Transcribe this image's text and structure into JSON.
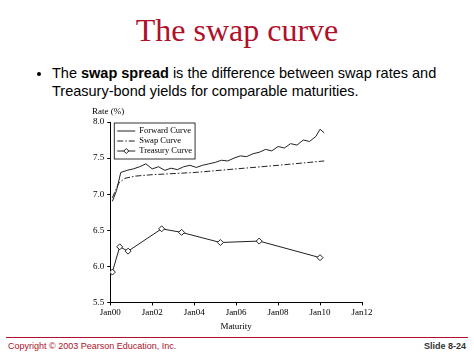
{
  "slide": {
    "title": "The swap curve",
    "bullet": "The swap spread is the difference between swap rates and Treasury-bond yields for comparable maturities.",
    "bullet_bold": "swap spread",
    "footer_left": "Copyright © 2003 Pearson Education, Inc.",
    "footer_right": "Slide 8-24"
  },
  "chart_data": {
    "type": "line",
    "y_label": "Rate (%)",
    "x_label": "Maturity",
    "xlim": [
      2000,
      2012
    ],
    "xticks": [
      {
        "value": 2000,
        "label": "Jan00"
      },
      {
        "value": 2002,
        "label": "Jan02"
      },
      {
        "value": 2004,
        "label": "Jan04"
      },
      {
        "value": 2006,
        "label": "Jan06"
      },
      {
        "value": 2008,
        "label": "Jan08"
      },
      {
        "value": 2010,
        "label": "Jan10"
      },
      {
        "value": 2012,
        "label": "Jan12"
      }
    ],
    "ylim": [
      5.5,
      8
    ],
    "yticks": [
      5.5,
      {
        "value": 6,
        "label": "6.0"
      },
      6.5,
      {
        "value": 7,
        "label": "7.0"
      },
      7.5,
      {
        "value": 8,
        "label": "8.0"
      }
    ],
    "grid": false,
    "legend": "upper left",
    "series": [
      {
        "name": "Forward Curve",
        "color": "#222222",
        "line_style": "solid",
        "marker": "none",
        "x": [
          2000.1,
          2000.3,
          2000.5,
          2000.8,
          2001.1,
          2001.4,
          2001.7,
          2002.0,
          2002.3,
          2002.6,
          2002.9,
          2003.2,
          2003.5,
          2003.8,
          2004.1,
          2004.4,
          2004.7,
          2005.0,
          2005.3,
          2005.6,
          2005.9,
          2006.2,
          2006.5,
          2006.8,
          2007.1,
          2007.4,
          2007.7,
          2008.0,
          2008.3,
          2008.6,
          2008.9,
          2009.2,
          2009.5,
          2009.8,
          2010.0,
          2010.2
        ],
        "values": [
          6.9,
          7.05,
          7.3,
          7.33,
          7.35,
          7.38,
          7.42,
          7.35,
          7.38,
          7.33,
          7.36,
          7.34,
          7.38,
          7.4,
          7.37,
          7.4,
          7.42,
          7.44,
          7.47,
          7.46,
          7.5,
          7.53,
          7.52,
          7.56,
          7.58,
          7.62,
          7.6,
          7.66,
          7.64,
          7.7,
          7.68,
          7.75,
          7.73,
          7.8,
          7.9,
          7.85
        ]
      },
      {
        "name": "Swap Curve",
        "color": "#222222",
        "line_style": "dashdot",
        "marker": "none",
        "x": [
          2000.1,
          2000.4,
          2000.7,
          2001.2,
          2002.0,
          2004.0,
          2006.0,
          2008.0,
          2010.2
        ],
        "values": [
          6.95,
          7.15,
          7.22,
          7.25,
          7.27,
          7.3,
          7.35,
          7.4,
          7.46
        ]
      },
      {
        "name": "Treasury Curve",
        "color": "#222222",
        "line_style": "solid",
        "marker": "diamond",
        "x": [
          2000.1,
          2000.45,
          2000.85,
          2002.45,
          2003.4,
          2005.25,
          2007.1,
          2010.0
        ],
        "values": [
          5.92,
          6.27,
          6.21,
          6.52,
          6.47,
          6.33,
          6.35,
          6.12
        ]
      }
    ]
  }
}
